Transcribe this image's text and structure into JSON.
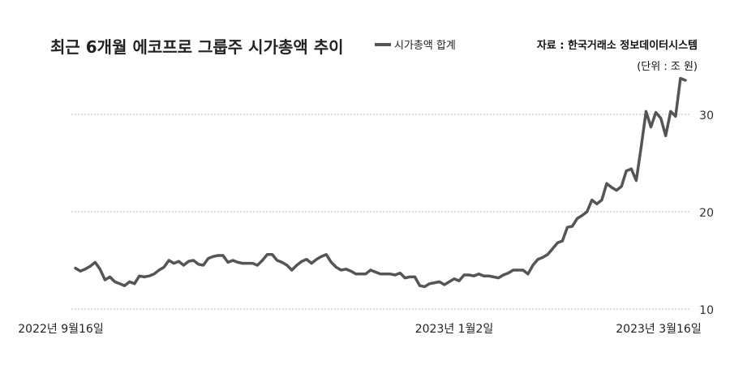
{
  "chart_data": {
    "type": "line",
    "title": "최근 6개월 에코프로 그룹주 시가총액 추이",
    "source": "자료 : 한국거래소 정보데이터시스템",
    "unit": "(단위 : 조 원)",
    "series": [
      {
        "name": "시가총액 합계",
        "color": "#555555",
        "values": [
          14.2,
          13.9,
          14.1,
          14.4,
          14.8,
          14.1,
          13.0,
          13.3,
          12.8,
          12.6,
          12.4,
          12.8,
          12.6,
          13.4,
          13.3,
          13.4,
          13.6,
          14.0,
          14.3,
          15.0,
          14.7,
          14.9,
          14.5,
          14.9,
          15.0,
          14.6,
          14.5,
          15.2,
          15.4,
          15.5,
          15.5,
          14.8,
          15.0,
          14.8,
          14.7,
          14.7,
          14.7,
          14.5,
          15.0,
          15.6,
          15.6,
          15.0,
          14.8,
          14.5,
          14.0,
          14.5,
          14.9,
          15.1,
          14.7,
          15.1,
          15.4,
          15.6,
          14.8,
          14.3,
          14.0,
          14.1,
          13.9,
          13.6,
          13.6,
          13.6,
          14.0,
          13.8,
          13.6,
          13.6,
          13.6,
          13.5,
          13.7,
          13.2,
          13.3,
          13.3,
          12.4,
          12.3,
          12.6,
          12.7,
          12.8,
          12.5,
          12.8,
          13.1,
          12.9,
          13.5,
          13.5,
          13.4,
          13.6,
          13.4,
          13.4,
          13.3,
          13.2,
          13.5,
          13.7,
          14.0,
          14.0,
          14.0,
          13.6,
          14.5,
          15.1,
          15.3,
          15.6,
          16.2,
          16.8,
          17.0,
          18.4,
          18.5,
          19.3,
          19.6,
          20.0,
          21.2,
          20.8,
          21.2,
          22.9,
          22.5,
          22.2,
          22.6,
          24.2,
          24.4,
          23.2,
          26.6,
          30.3,
          28.7,
          30.2,
          29.6,
          27.8,
          30.3,
          29.8,
          33.7,
          33.5
        ]
      }
    ],
    "x_tick_labels": [
      "2022년 9월16일",
      "2023년 1월2일",
      "2023년 3월16일"
    ],
    "y_ticks": [
      10,
      20,
      30
    ],
    "ylim": [
      10,
      35
    ],
    "y_axis_side": "right",
    "grid": "horizontal dashed",
    "legend_position": "top"
  }
}
